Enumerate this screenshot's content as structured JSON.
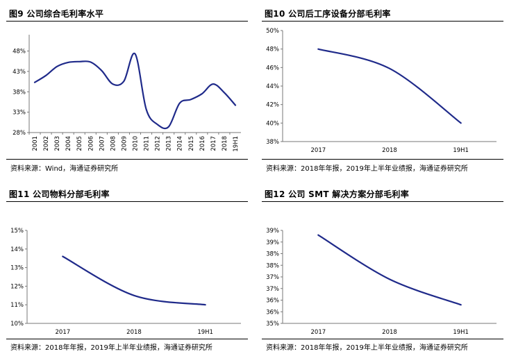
{
  "chart_data": [
    {
      "type": "line",
      "title": "图9  公司综合毛利率水平",
      "x": [
        "2001",
        "2002",
        "2003",
        "2004",
        "2005",
        "2006",
        "2007",
        "2008",
        "2009",
        "2010",
        "2011",
        "2012",
        "2013",
        "2014",
        "2015",
        "2016",
        "2017",
        "2018",
        "19H1"
      ],
      "series": [
        {
          "values": [
            40.3,
            42,
            44.2,
            45.2,
            45.4,
            45.3,
            43.2,
            39.9,
            40.6,
            47.3,
            33.7,
            30.0,
            29.4,
            35.2,
            36.1,
            37.5,
            39.9,
            37.8,
            34.7
          ]
        }
      ],
      "ytick_labels": [
        "28%",
        "33%",
        "38%",
        "43%",
        "48%"
      ],
      "yticks": [
        28,
        33,
        38,
        43,
        48
      ],
      "ylim": [
        28,
        52
      ],
      "color": "#1f2a8a",
      "source": "资料来源：Wind，海通证券研究所"
    },
    {
      "type": "line",
      "title": "图10  公司后工序设备分部毛利率",
      "x": [
        "2017",
        "2018",
        "19H1"
      ],
      "series": [
        {
          "values": [
            48.0,
            45.9,
            40.0
          ]
        }
      ],
      "ytick_labels": [
        "38%",
        "40%",
        "42%",
        "44%",
        "46%",
        "48%",
        "50%"
      ],
      "yticks": [
        38,
        40,
        42,
        44,
        46,
        48,
        50
      ],
      "ylim": [
        38,
        50
      ],
      "color": "#1f2a8a",
      "source": "资料来源：2018年年报，2019年上半年业绩报，海通证券研究所"
    },
    {
      "type": "line",
      "title": "图11  公司物料分部毛利率",
      "x": [
        "2017",
        "2018",
        "19H1"
      ],
      "series": [
        {
          "values": [
            13.6,
            11.5,
            11.0
          ]
        }
      ],
      "ytick_labels": [
        "10%",
        "11%",
        "12%",
        "13%",
        "14%",
        "15%"
      ],
      "yticks": [
        10,
        11,
        12,
        13,
        14,
        15
      ],
      "ylim": [
        10,
        15
      ],
      "color": "#1f2a8a",
      "source": "资料来源：2018年年报，2019年上半年业绩报，海通证券研究所"
    },
    {
      "type": "line",
      "title": "图12  公司 SMT 解决方案分部毛利率",
      "x": [
        "2017",
        "2018",
        "19H1"
      ],
      "series": [
        {
          "values": [
            38.8,
            36.9,
            35.8
          ]
        }
      ],
      "ytick_labels": [
        "35%",
        "36%",
        "36%",
        "37%",
        "37%",
        "38%",
        "38%",
        "39%",
        "39%"
      ],
      "yticks": [
        35,
        35.5,
        36,
        36.5,
        37,
        37.5,
        38,
        38.5,
        39
      ],
      "ylim": [
        35,
        39
      ],
      "color": "#1f2a8a",
      "source": "资料来源：2018年年报，2019年上半年业绩报，海通证券研究所"
    }
  ]
}
